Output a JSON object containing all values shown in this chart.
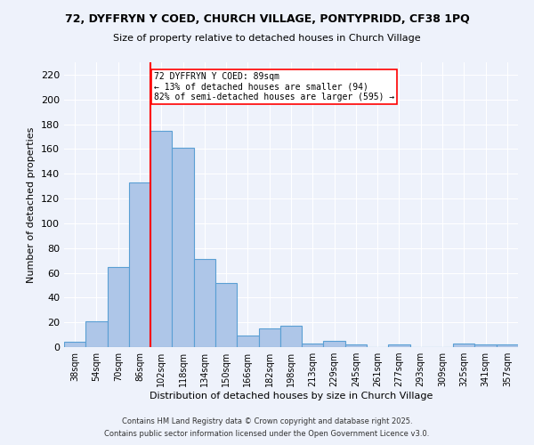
{
  "title": "72, DYFFRYN Y COED, CHURCH VILLAGE, PONTYPRIDD, CF38 1PQ",
  "subtitle": "Size of property relative to detached houses in Church Village",
  "xlabel": "Distribution of detached houses by size in Church Village",
  "ylabel": "Number of detached properties",
  "categories": [
    "38sqm",
    "54sqm",
    "70sqm",
    "86sqm",
    "102sqm",
    "118sqm",
    "134sqm",
    "150sqm",
    "166sqm",
    "182sqm",
    "198sqm",
    "213sqm",
    "229sqm",
    "245sqm",
    "261sqm",
    "277sqm",
    "293sqm",
    "309sqm",
    "325sqm",
    "341sqm",
    "357sqm"
  ],
  "values": [
    4,
    21,
    65,
    133,
    175,
    161,
    71,
    52,
    9,
    15,
    17,
    3,
    5,
    2,
    0,
    2,
    0,
    0,
    3,
    2,
    2
  ],
  "bar_color": "#aec6e8",
  "bar_edge_color": "#5a9fd4",
  "ylim": [
    0,
    230
  ],
  "yticks": [
    0,
    20,
    40,
    60,
    80,
    100,
    120,
    140,
    160,
    180,
    200,
    220
  ],
  "red_line_index": 3.5,
  "annotation_text": "72 DYFFRYN Y COED: 89sqm\n← 13% of detached houses are smaller (94)\n82% of semi-detached houses are larger (595) →",
  "footnote1": "Contains HM Land Registry data © Crown copyright and database right 2025.",
  "footnote2": "Contains public sector information licensed under the Open Government Licence v3.0.",
  "background_color": "#eef2fb"
}
